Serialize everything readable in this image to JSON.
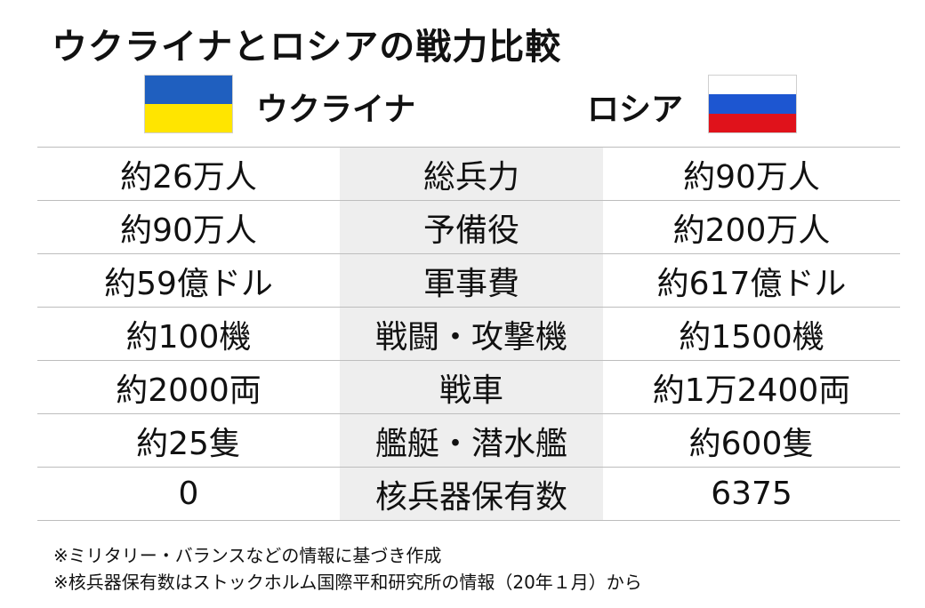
{
  "title": "ウクライナとロシアの戦力比較",
  "header": {
    "ukraine": {
      "name": "ウクライナ",
      "flag_colors": [
        "#1f5fbf",
        "#ffe500"
      ]
    },
    "russia": {
      "name": "ロシア",
      "flag_colors": [
        "#ffffff",
        "#1d56d1",
        "#e0121b"
      ]
    }
  },
  "rows": [
    {
      "label": "総兵力",
      "ukraine": "約26万人",
      "russia": "約90万人"
    },
    {
      "label": "予備役",
      "ukraine": "約90万人",
      "russia": "約200万人"
    },
    {
      "label": "軍事費",
      "ukraine": "約59億ドル",
      "russia": "約617億ドル"
    },
    {
      "label": "戦闘・攻撃機",
      "ukraine": "約100機",
      "russia": "約1500機"
    },
    {
      "label": "戦車",
      "ukraine": "約2000両",
      "russia": "約1万2400両"
    },
    {
      "label": "艦艇・潜水艦",
      "ukraine": "約25隻",
      "russia": "約600隻"
    },
    {
      "label": "核兵器保有数",
      "ukraine": "0",
      "russia": "6375"
    }
  ],
  "notes": [
    "※ミリタリー・バランスなどの情報に基づき作成",
    "※核兵器保有数はストックホルム国際平和研究所の情報（20年１月）から"
  ]
}
